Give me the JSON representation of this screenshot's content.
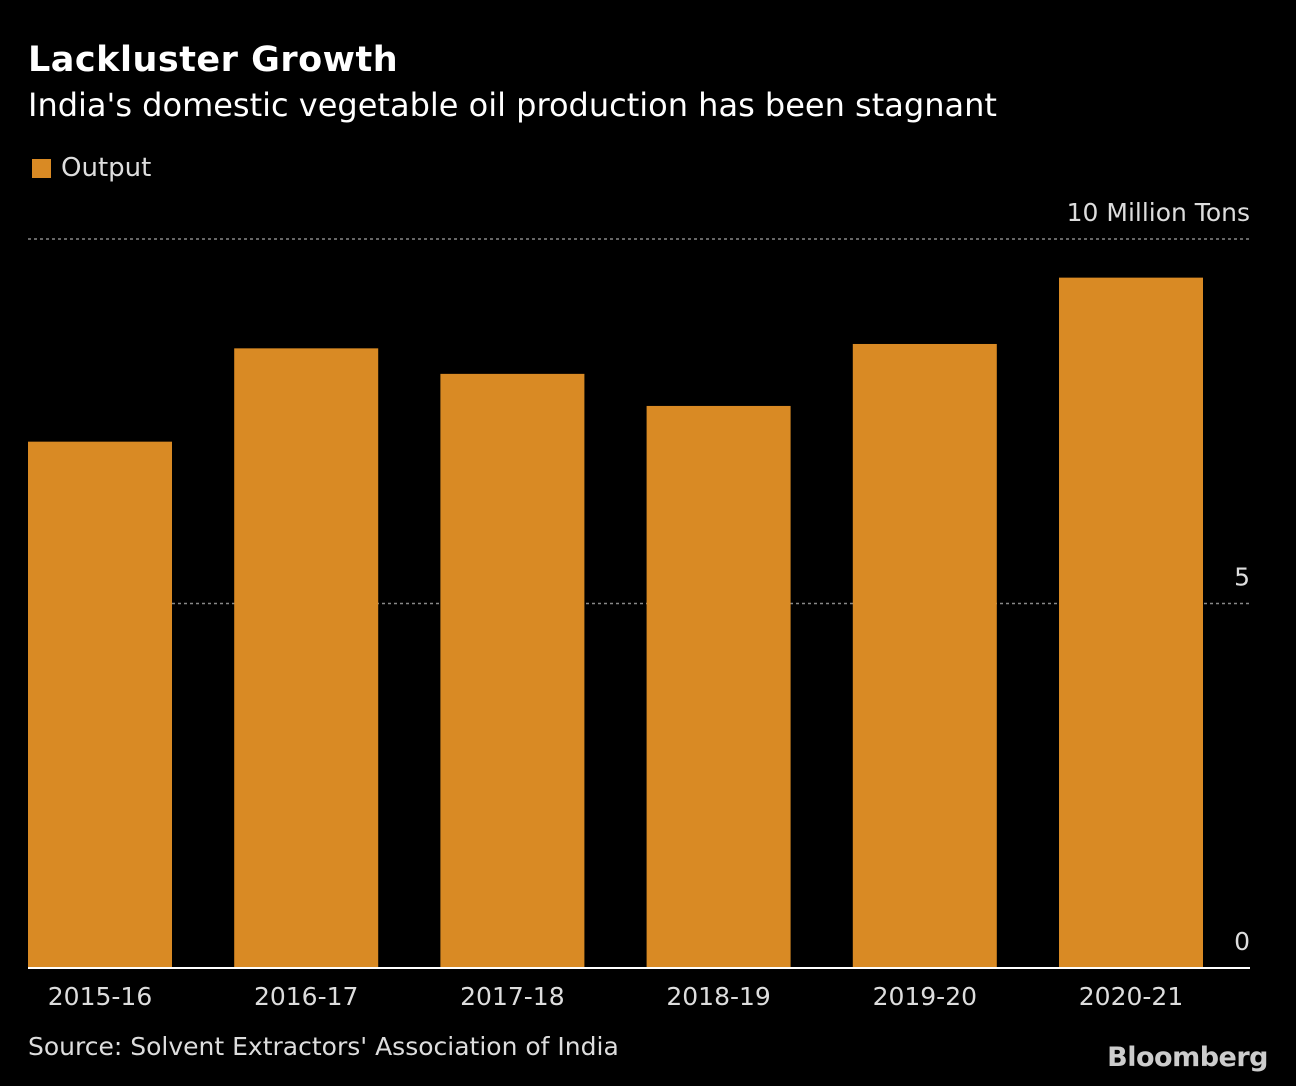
{
  "chart_data": {
    "type": "bar",
    "title": "Lackluster Growth",
    "subtitle": "India's domestic vegetable oil production has been stagnant",
    "categories": [
      "2015-16",
      "2016-17",
      "2017-18",
      "2018-19",
      "2019-20",
      "2020-21"
    ],
    "series": [
      {
        "name": "Output",
        "values": [
          7.22,
          8.5,
          8.15,
          7.71,
          8.56,
          9.47
        ],
        "color": "#d98a24"
      }
    ],
    "ylim": [
      0,
      10
    ],
    "yticks": [
      {
        "value": 0,
        "label": "0"
      },
      {
        "value": 5,
        "label": "5"
      },
      {
        "value": 10,
        "label": "10 Million Tons"
      }
    ],
    "ylabel": "",
    "xlabel": "",
    "grid": true,
    "legend": "top-left",
    "source": "Source: Solvent Extractors' Association of India"
  },
  "branding": "Bloomberg"
}
